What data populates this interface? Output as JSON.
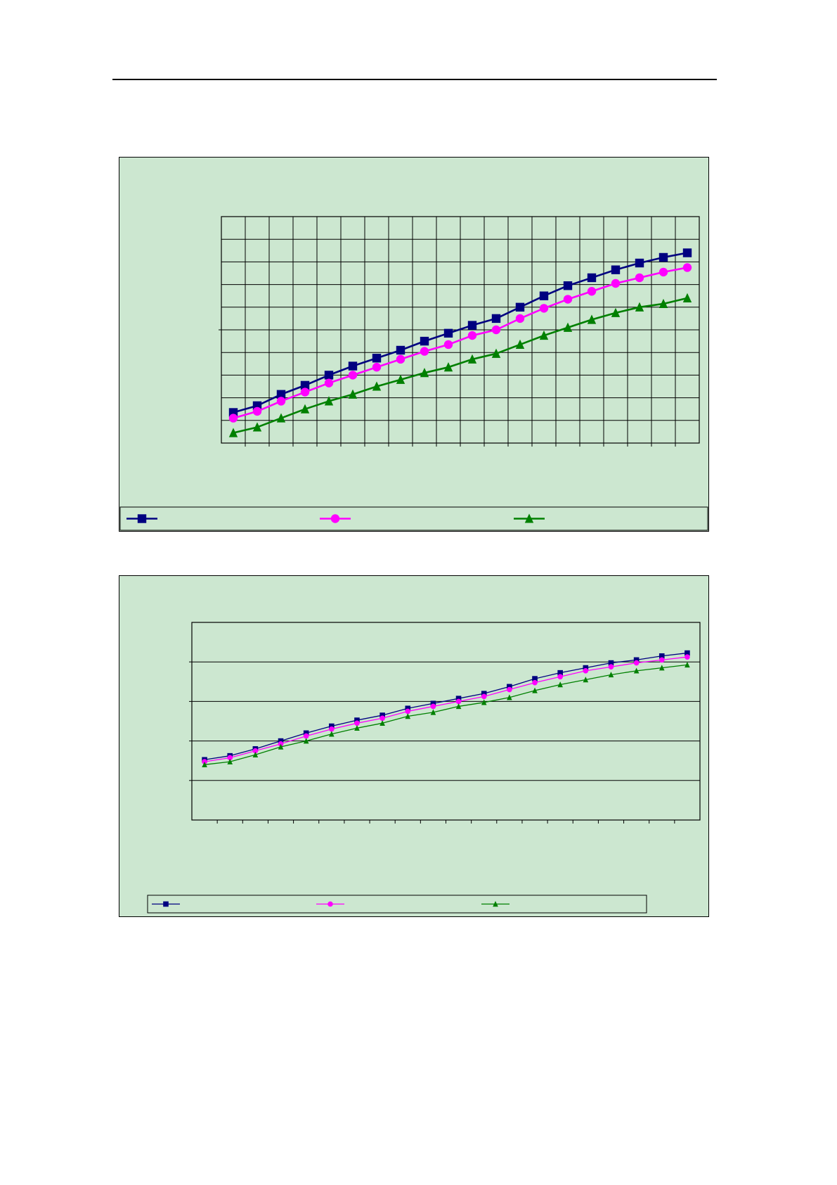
{
  "page": {
    "background": "#ffffff",
    "rule_color": "#000000"
  },
  "colors": {
    "panel_background": "#cce7d0",
    "axis": "#000000",
    "grid": "#000000"
  },
  "chart_data": [
    {
      "type": "line",
      "x": [
        1,
        2,
        3,
        4,
        5,
        6,
        7,
        8,
        9,
        10,
        11,
        12,
        13,
        14,
        15,
        16,
        17,
        18,
        19,
        20
      ],
      "series": [
        {
          "color": "#000080",
          "marker": "square",
          "values": [
            13.5,
            16.5,
            21.5,
            25.5,
            30,
            34,
            37.5,
            41,
            45,
            48.5,
            52,
            55,
            60,
            65,
            69.5,
            73,
            76.5,
            79.5,
            82,
            84
          ]
        },
        {
          "color": "#ff00ff",
          "marker": "circle",
          "values": [
            11,
            14,
            18.5,
            22.5,
            26.5,
            30,
            33.5,
            37,
            40.5,
            43.5,
            47.5,
            50,
            55,
            59.5,
            63.5,
            67,
            70.5,
            73,
            75.5,
            77.5
          ]
        },
        {
          "color": "#008000",
          "marker": "triangle",
          "values": [
            4.5,
            7,
            11,
            15,
            18.5,
            21.5,
            25,
            28,
            31,
            33.5,
            37,
            39.5,
            43.5,
            47.5,
            51,
            54.5,
            57.5,
            60,
            61.5,
            64
          ]
        }
      ],
      "ylim": [
        0,
        100
      ],
      "grid": {
        "horizontal": true,
        "vertical": true
      },
      "legend": "bottom"
    },
    {
      "type": "line",
      "x": [
        1,
        2,
        3,
        4,
        5,
        6,
        7,
        8,
        9,
        10,
        11,
        12,
        13,
        14,
        15,
        16,
        17,
        18,
        19,
        20
      ],
      "series": [
        {
          "color": "#000080",
          "marker": "square",
          "values": [
            30.5,
            32.5,
            36,
            40,
            44,
            47.5,
            50.5,
            53,
            56.5,
            59,
            61.5,
            64,
            67.5,
            71.5,
            74.5,
            77,
            79.5,
            81,
            83,
            84.5
          ]
        },
        {
          "color": "#ff00ff",
          "marker": "circle",
          "values": [
            29.5,
            31.5,
            35,
            38.5,
            42.5,
            46,
            49,
            51.5,
            55,
            57.5,
            60,
            62.5,
            66,
            69.5,
            72.5,
            75.5,
            77.5,
            79.5,
            81,
            82.5
          ]
        },
        {
          "color": "#008000",
          "marker": "triangle",
          "values": [
            28,
            29.5,
            33,
            37,
            40,
            43.5,
            46.5,
            49,
            52.5,
            54.5,
            57.5,
            59.5,
            62,
            65.5,
            68.5,
            71,
            73.5,
            75.5,
            77,
            78.5
          ]
        }
      ],
      "ylim": [
        0,
        100
      ],
      "grid": {
        "horizontal": true,
        "vertical": false
      },
      "legend": "bottom"
    }
  ]
}
